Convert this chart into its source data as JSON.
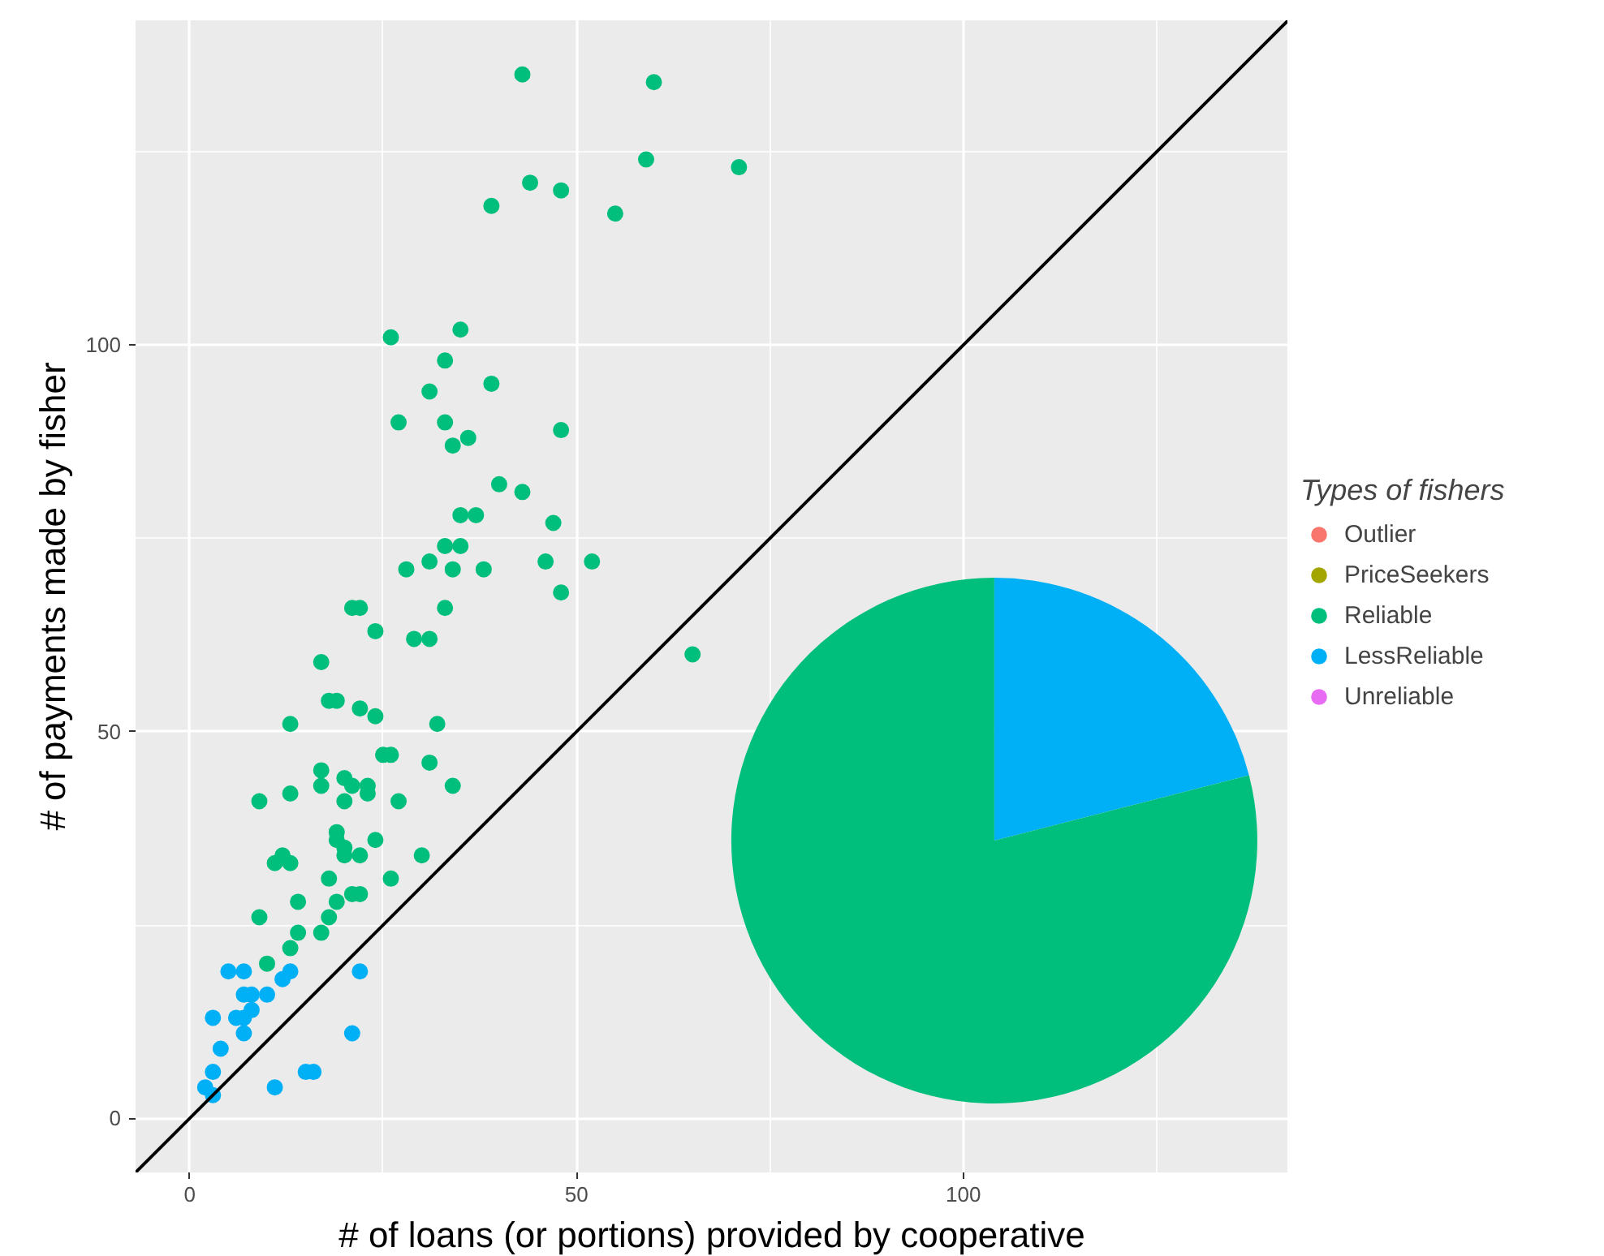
{
  "chart_data": [
    {
      "type": "scatter",
      "xlabel": "# of loans (or portions) provided by cooperative",
      "ylabel": "# of payments made by fisher",
      "legend_title": "Types of fishers",
      "legend": "right",
      "grid": true,
      "marker": "circle",
      "xlim": [
        -7,
        142
      ],
      "ylim": [
        -7,
        142
      ],
      "xticks": [
        0,
        50,
        100
      ],
      "yticks": [
        0,
        50,
        100
      ],
      "series": [
        {
          "name": "Outlier",
          "color": "#f8766d"
        },
        {
          "name": "PriceSeekers",
          "color": "#a3a500"
        },
        {
          "name": "Reliable",
          "color": "#00bf7d",
          "x": [
            43,
            60,
            71,
            59,
            44,
            48,
            39,
            55,
            26,
            35,
            33,
            31,
            39,
            27,
            33,
            36,
            34,
            48,
            40,
            43,
            35,
            37,
            47,
            33,
            35,
            31,
            28,
            34,
            38,
            46,
            52,
            48,
            21,
            22,
            33,
            24,
            29,
            31,
            17,
            18,
            19,
            22,
            24,
            13,
            32,
            25,
            26,
            31,
            17,
            20,
            21,
            23,
            23,
            17,
            13,
            9,
            20,
            27,
            34,
            19,
            19,
            24,
            20,
            20,
            22,
            30,
            11,
            12,
            13,
            18,
            26,
            21,
            22,
            14,
            19,
            18,
            9,
            14,
            17,
            13,
            10,
            65
          ],
          "values": [
            135,
            134,
            123,
            124,
            121,
            120,
            118,
            117,
            101,
            102,
            98,
            94,
            95,
            90,
            90,
            88,
            87,
            89,
            82,
            81,
            78,
            78,
            77,
            74,
            74,
            72,
            71,
            71,
            71,
            72,
            72,
            68,
            66,
            66,
            66,
            63,
            62,
            62,
            59,
            54,
            54,
            53,
            52,
            51,
            51,
            47,
            47,
            46,
            45,
            44,
            43,
            43,
            42,
            43,
            42,
            41,
            41,
            41,
            43,
            37,
            36,
            36,
            35,
            34,
            34,
            34,
            33,
            34,
            33,
            31,
            31,
            29,
            29,
            28,
            28,
            26,
            26,
            24,
            24,
            22,
            20,
            60
          ]
        },
        {
          "name": "LessReliable",
          "color": "#00b0f6",
          "x": [
            5,
            7,
            13,
            22,
            12,
            7,
            8,
            10,
            8,
            3,
            6,
            7,
            7,
            21,
            4,
            3,
            15,
            16,
            2,
            11,
            3
          ],
          "values": [
            19,
            19,
            19,
            19,
            18,
            16,
            16,
            16,
            14,
            13,
            13,
            13,
            11,
            11,
            9,
            6,
            6,
            6,
            4,
            4,
            3
          ]
        },
        {
          "name": "Unreliable",
          "color": "#e76bf3"
        },
        {
          "type": "line",
          "marker": "none",
          "color": "#000000",
          "x": [
            -7,
            142
          ],
          "values": [
            -7,
            142
          ]
        }
      ]
    },
    {
      "type": "pie",
      "categories": [
        null,
        null
      ],
      "values": [
        21,
        79
      ],
      "colors": [
        "#00b0f6",
        "#00bf7d"
      ]
    }
  ]
}
